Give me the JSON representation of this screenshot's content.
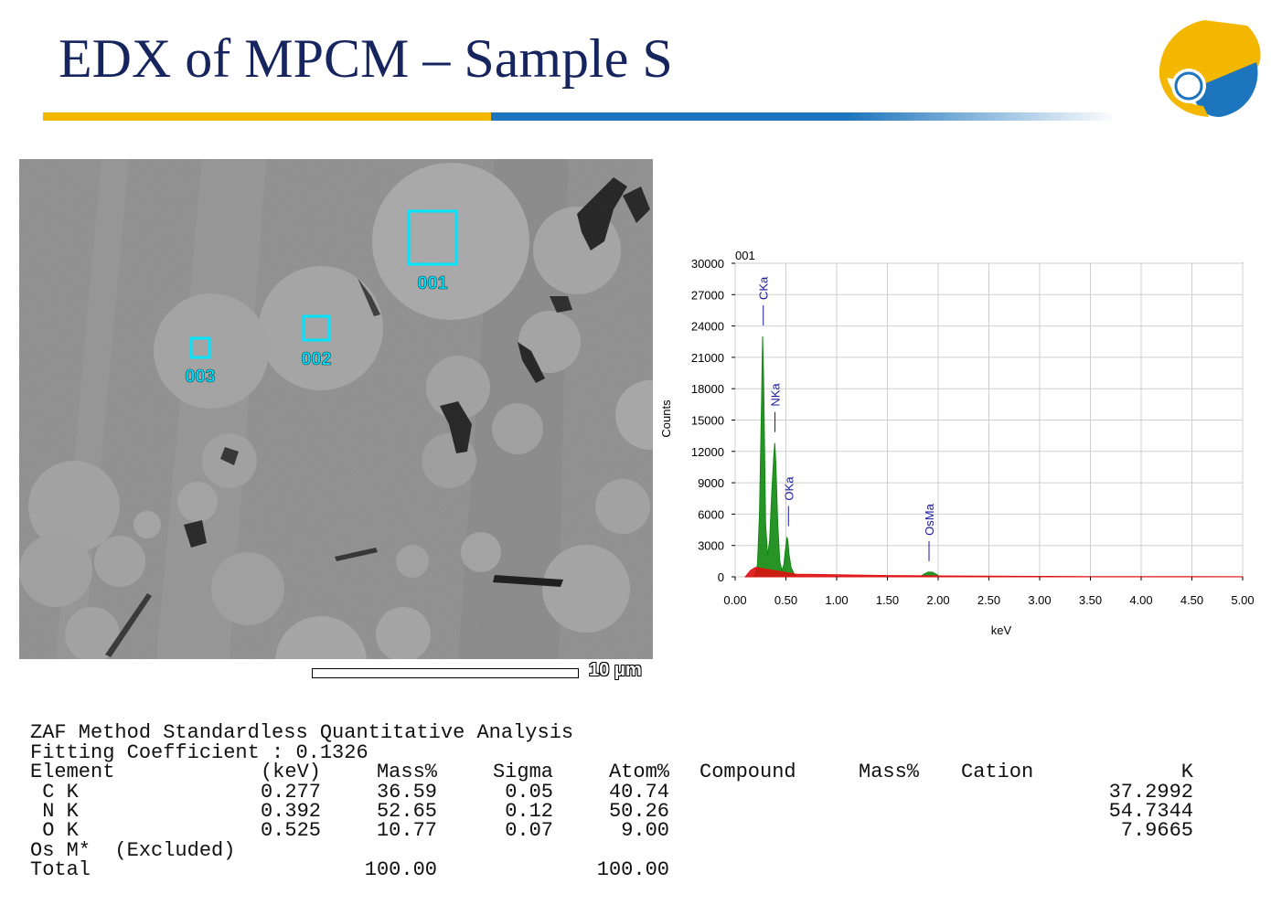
{
  "slide": {
    "title": "EDX of MPCM – Sample S"
  },
  "logo": {
    "icon": "ginkgo-leaf-logo-icon",
    "colors": {
      "yellow": "#f4b700",
      "blue": "#1d75bd"
    }
  },
  "sem_image": {
    "regions": [
      {
        "label": "001"
      },
      {
        "label": "002"
      },
      {
        "label": "003"
      }
    ],
    "scale_bar_label": "10 μm",
    "frame_color": "#00e5ff"
  },
  "chart_data": {
    "type": "line",
    "title": "001",
    "xlabel": "keV",
    "ylabel": "Counts",
    "xlim": [
      0,
      5
    ],
    "ylim": [
      0,
      30000
    ],
    "grid": true,
    "x_ticks": [
      "0.00",
      "0.50",
      "1.00",
      "1.50",
      "2.00",
      "2.50",
      "3.00",
      "3.50",
      "4.00",
      "4.50",
      "5.00"
    ],
    "y_ticks": [
      "0",
      "3000",
      "6000",
      "9000",
      "12000",
      "15000",
      "18000",
      "21000",
      "24000",
      "27000",
      "30000"
    ],
    "series": [
      {
        "color": "#118811",
        "x": [
          0.18,
          0.2,
          0.22,
          0.24,
          0.26,
          0.27,
          0.28,
          0.29,
          0.3,
          0.32,
          0.34,
          0.36,
          0.38,
          0.39,
          0.4,
          0.42,
          0.44,
          0.46,
          0.48,
          0.5,
          0.51,
          0.52,
          0.53,
          0.55,
          0.58,
          0.6
        ],
        "y": [
          0,
          300,
          1200,
          6000,
          17000,
          23000,
          19000,
          12000,
          5000,
          2000,
          3500,
          8000,
          11500,
          12800,
          11000,
          5000,
          1500,
          600,
          1200,
          3000,
          3800,
          3400,
          2200,
          900,
          300,
          0
        ]
      },
      {
        "color": "#118811",
        "x": [
          1.82,
          1.86,
          1.9,
          1.94,
          1.98,
          2.02
        ],
        "y": [
          0,
          250,
          450,
          450,
          250,
          0
        ]
      },
      {
        "color": "#dd1111",
        "x": [
          0.1,
          0.15,
          0.2,
          0.6,
          1.0,
          1.5,
          2.0,
          2.5,
          3.0,
          3.5,
          4.0,
          4.5,
          5.0
        ],
        "y": [
          0,
          600,
          900,
          250,
          200,
          120,
          90,
          60,
          40,
          30,
          20,
          15,
          10
        ]
      }
    ],
    "peak_labels": [
      {
        "label": "CKa",
        "x": 0.277,
        "y": 23000
      },
      {
        "label": "NKa",
        "x": 0.392,
        "y": 12800
      },
      {
        "label": "OKa",
        "x": 0.525,
        "y": 3800
      },
      {
        "label": "OsMa",
        "x": 1.91,
        "y": 450
      }
    ]
  },
  "analysis": {
    "line1": "ZAF Method Standardless Quantitative Analysis",
    "line2": "Fitting Coefficient : 0.1326",
    "headers": {
      "element": "Element",
      "kev": "(keV)",
      "mass": "Mass%",
      "sigma": "Sigma",
      "atom": "Atom%",
      "compound": "Compound",
      "mass2": "Mass%",
      "cation": "Cation",
      "k": "K"
    },
    "rows": [
      {
        "element": " C K",
        "kev": "0.277",
        "mass": "36.59",
        "sigma": "0.05",
        "atom": "40.74",
        "k": "37.2992"
      },
      {
        "element": " N K",
        "kev": "0.392",
        "mass": "52.65",
        "sigma": "0.12",
        "atom": "50.26",
        "k": "54.7344"
      },
      {
        "element": " O K",
        "kev": "0.525",
        "mass": "10.77",
        "sigma": "0.07",
        "atom": "9.00",
        "k": "7.9665"
      }
    ],
    "excluded": "Os M*  (Excluded)",
    "total_label": "Total",
    "total_mass": "100.00",
    "total_atom": "100.00"
  }
}
